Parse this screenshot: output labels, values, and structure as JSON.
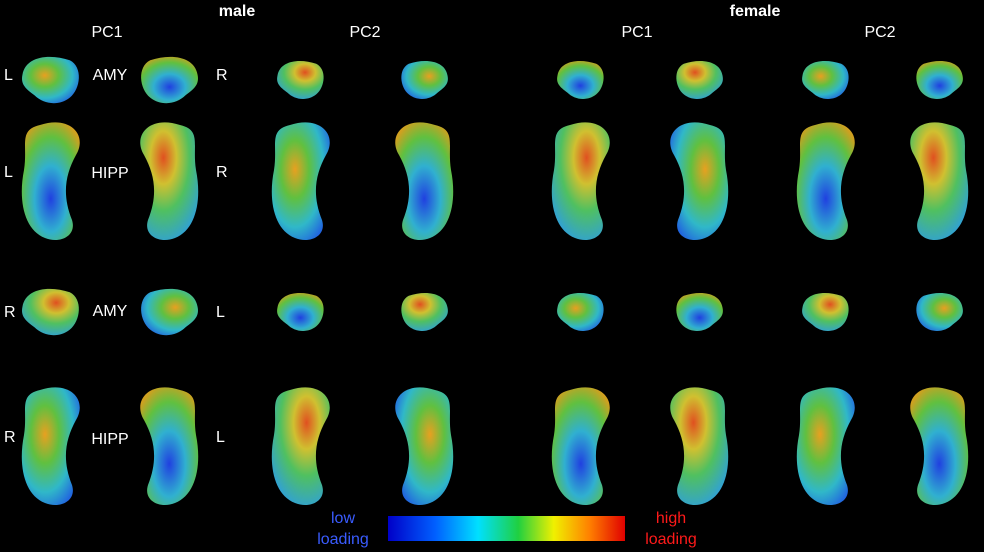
{
  "header": {
    "groups": [
      {
        "title": "male",
        "columns": [
          "PC1",
          "PC2"
        ]
      },
      {
        "title": "female",
        "columns": [
          "PC1",
          "PC2"
        ]
      }
    ]
  },
  "rows": [
    {
      "structure": "AMY",
      "left_side": "L",
      "right_side": "R"
    },
    {
      "structure": "HIPP",
      "left_side": "L",
      "right_side": "R"
    },
    {
      "structure": "AMY",
      "left_side": "R",
      "right_side": "L"
    },
    {
      "structure": "HIPP",
      "left_side": "R",
      "right_side": "L"
    }
  ],
  "colorbar": {
    "low": [
      "low",
      "loading"
    ],
    "high": [
      "high",
      "loading"
    ]
  }
}
